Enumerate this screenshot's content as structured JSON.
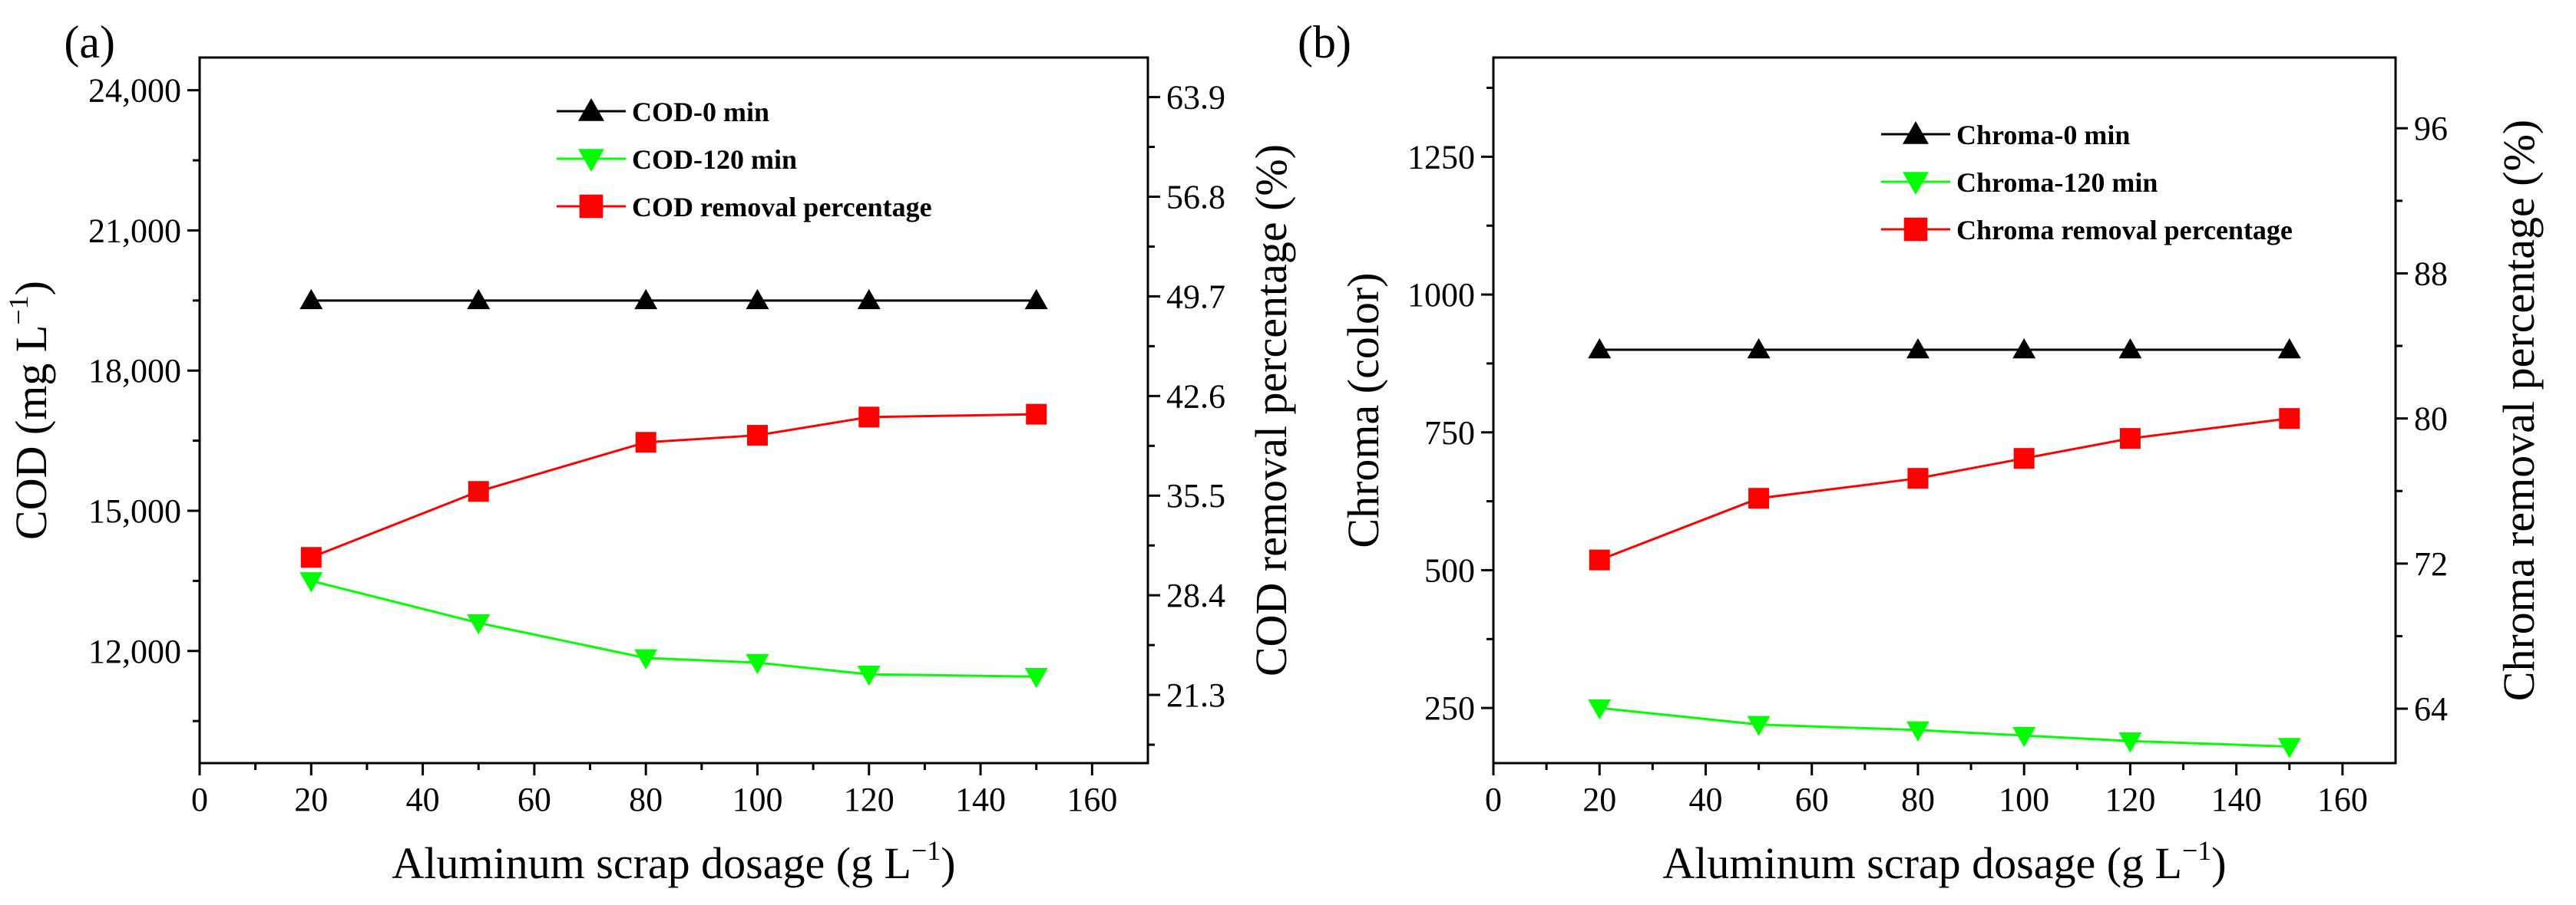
{
  "chart_data": [
    {
      "type": "line",
      "panel_label": "(a)",
      "xlabel": "Aluminum scrap dosage (g L",
      "xlabel_sup": "−1",
      "xlabel_close": ")",
      "ylabel": "COD (mg L",
      "ylabel_sup": "−1",
      "ylabel_close": ")",
      "y2label": "COD removal percentage (%)",
      "xlim": [
        0,
        170
      ],
      "ylim": [
        9600,
        24700
      ],
      "y2lim": [
        16.44,
        66.72
      ],
      "xticks": [
        0,
        20,
        40,
        60,
        80,
        100,
        120,
        140,
        160
      ],
      "xtick_labels": [
        "0",
        "20",
        "40",
        "60",
        "80",
        "100",
        "120",
        "140",
        "160"
      ],
      "yticks": [
        12000,
        15000,
        18000,
        21000,
        24000
      ],
      "ytick_labels": [
        "12,000",
        "15,000",
        "18,000",
        "21,000",
        "24,000"
      ],
      "y2ticks": [
        21.3,
        28.4,
        35.5,
        42.6,
        49.7,
        56.8,
        63.9
      ],
      "y2tick_labels": [
        "21.3",
        "28.4",
        "35.5",
        "42.6",
        "49.7",
        "56.8",
        "63.9"
      ],
      "x": [
        20,
        50,
        80,
        100,
        120,
        150
      ],
      "series": [
        {
          "name": "COD-0 min",
          "axis": "left",
          "marker": "triangle-up",
          "color": "#000000",
          "values": [
            19500,
            19500,
            19500,
            19500,
            19500,
            19500
          ]
        },
        {
          "name": "COD-120 min",
          "axis": "left",
          "marker": "triangle-down",
          "color": "#00ff00",
          "values": [
            13500,
            12600,
            11850,
            11750,
            11500,
            11450
          ]
        },
        {
          "name": "COD removal percentage",
          "axis": "right",
          "marker": "square",
          "color": "#ff0000",
          "values": [
            31.1,
            35.8,
            39.3,
            39.8,
            41.1,
            41.3
          ]
        }
      ],
      "legend_position": "top-center"
    },
    {
      "type": "line",
      "panel_label": "(b)",
      "xlabel": "Aluminum scrap dosage (g L",
      "xlabel_sup": "−1",
      "xlabel_close": ")",
      "ylabel": "Chroma (color)",
      "y2label": "Chroma removal percentage  (%)",
      "xlim": [
        0,
        170
      ],
      "ylim": [
        150,
        1430
      ],
      "y2lim": [
        61.0,
        99.9
      ],
      "xticks": [
        0,
        20,
        40,
        60,
        80,
        100,
        120,
        140,
        160
      ],
      "xtick_labels": [
        "0",
        "20",
        "40",
        "60",
        "80",
        "100",
        "120",
        "140",
        "160"
      ],
      "yticks": [
        250,
        500,
        750,
        1000,
        1250
      ],
      "ytick_labels": [
        "250",
        "500",
        "750",
        "1000",
        "1250"
      ],
      "y2ticks": [
        64,
        72,
        80,
        88,
        96
      ],
      "y2tick_labels": [
        "64",
        "72",
        "80",
        "88",
        "96"
      ],
      "x": [
        20,
        50,
        80,
        100,
        120,
        150
      ],
      "series": [
        {
          "name": "Chroma-0 min",
          "axis": "left",
          "marker": "triangle-up",
          "color": "#000000",
          "values": [
            900,
            900,
            900,
            900,
            900,
            900
          ]
        },
        {
          "name": "Chroma-120 min",
          "axis": "left",
          "marker": "triangle-down",
          "color": "#00ff00",
          "values": [
            250,
            220,
            210,
            200,
            190,
            180
          ]
        },
        {
          "name": "Chroma removal percentage",
          "axis": "right",
          "marker": "square",
          "color": "#ff0000",
          "values": [
            72.2,
            75.6,
            76.7,
            77.8,
            78.9,
            80.0
          ]
        }
      ],
      "legend_position": "top-center"
    }
  ]
}
